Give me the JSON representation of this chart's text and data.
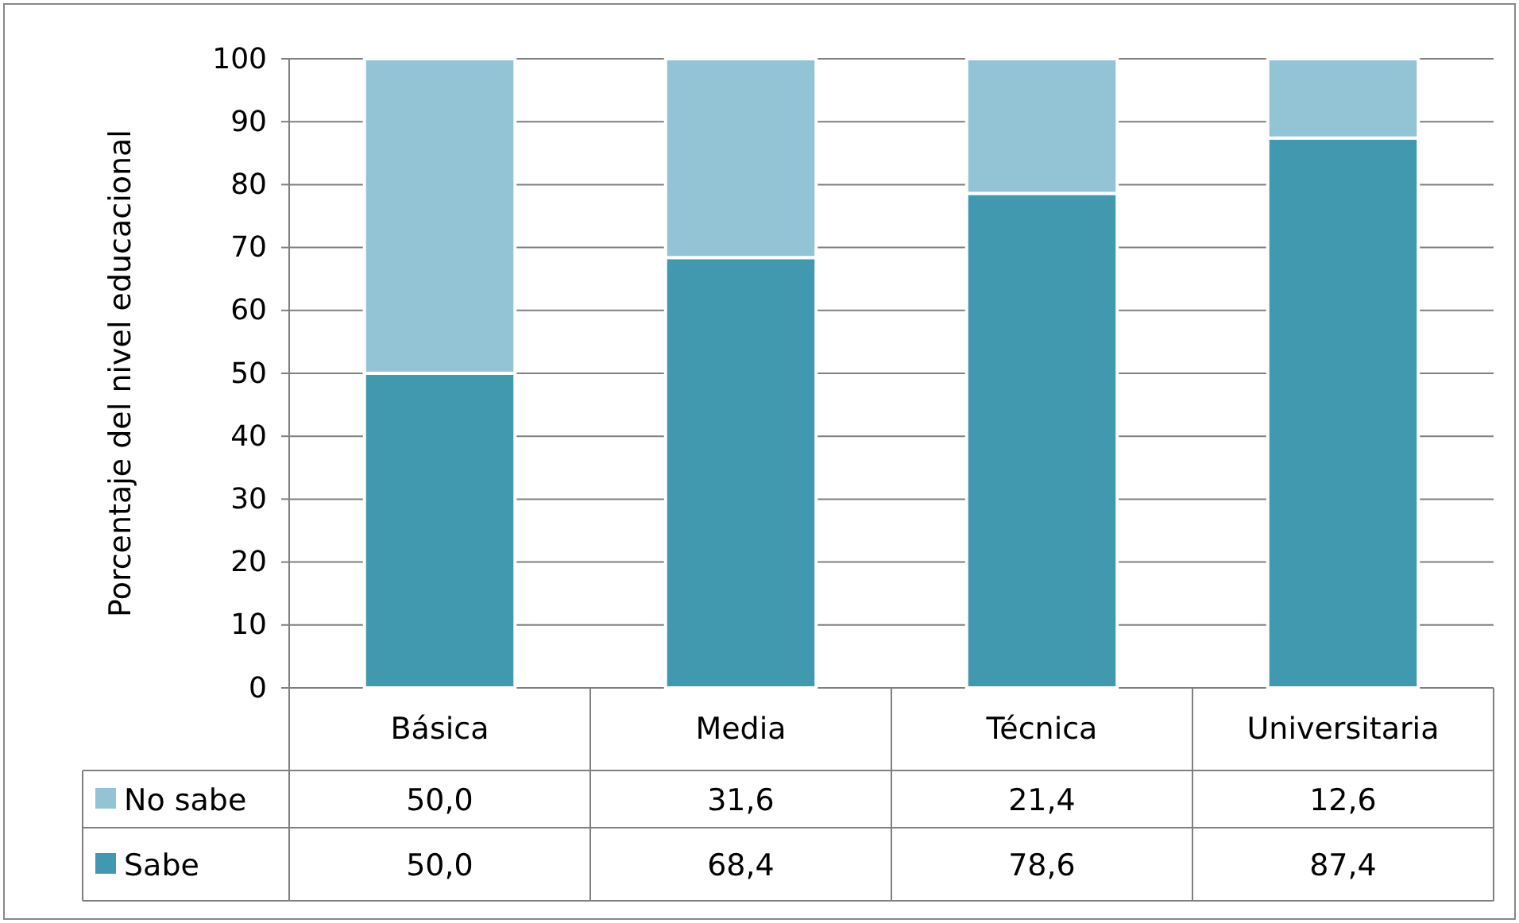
{
  "chart_data": {
    "type": "bar",
    "stacked": true,
    "ylabel": "Porcentaje del nivel educacional",
    "categories": [
      "Básica",
      "Media",
      "Técnica",
      "Universitaria"
    ],
    "series": [
      {
        "name": "Sabe",
        "color": "#4199af",
        "values": [
          50.0,
          68.4,
          78.6,
          87.4
        ],
        "value_labels": [
          "50,0",
          "68,4",
          "78,6",
          "87,4"
        ]
      },
      {
        "name": "No sabe",
        "color": "#93c4d6",
        "values": [
          50.0,
          31.6,
          21.4,
          12.6
        ],
        "value_labels": [
          "50,0",
          "31,6",
          "21,4",
          "12,6"
        ]
      }
    ],
    "ylim": [
      0,
      100
    ],
    "yticks": [
      0,
      10,
      20,
      30,
      40,
      50,
      60,
      70,
      80,
      90,
      100
    ],
    "grid": "y",
    "legend": "bottom"
  }
}
